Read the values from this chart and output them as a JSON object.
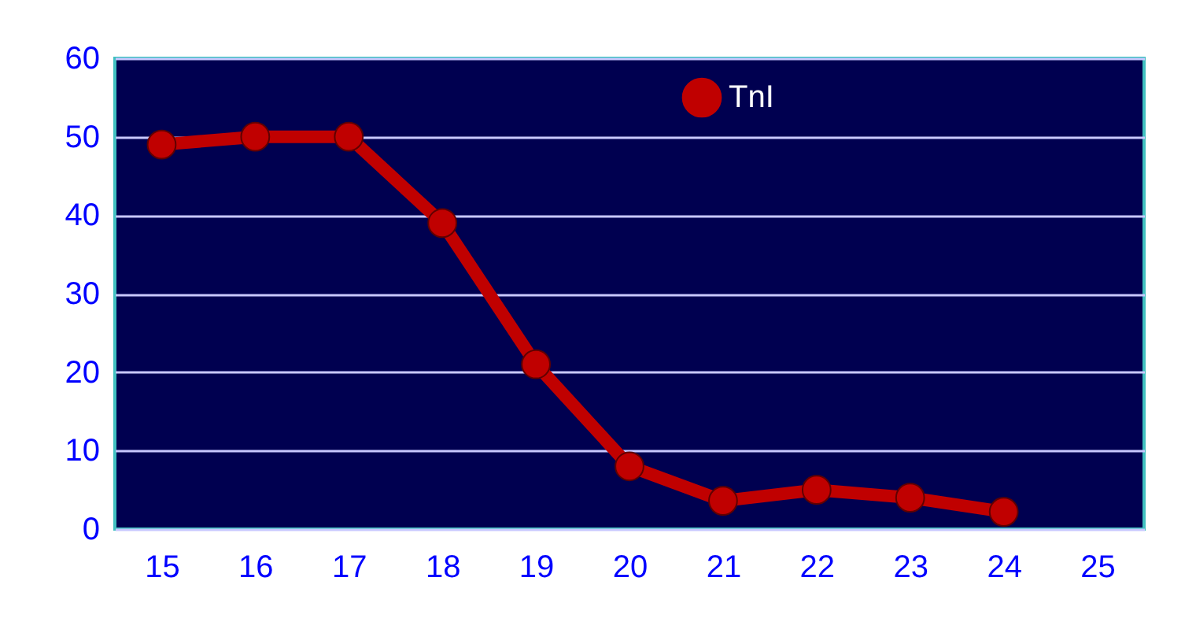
{
  "chart_data": {
    "type": "line",
    "categories": [
      "15",
      "16",
      "17",
      "18",
      "19",
      "20",
      "21",
      "22",
      "23",
      "24",
      "25"
    ],
    "series": [
      {
        "name": "TnI",
        "color": "#c00000",
        "values": [
          49,
          50,
          50,
          39,
          21,
          8,
          3.6,
          5,
          4,
          2.2,
          null
        ]
      }
    ],
    "ylim": [
      0,
      60
    ],
    "yticks": [
      0,
      10,
      20,
      30,
      40,
      50,
      60
    ],
    "grid": "y",
    "legend": "top",
    "marker": "circle",
    "line_style": "solid"
  }
}
